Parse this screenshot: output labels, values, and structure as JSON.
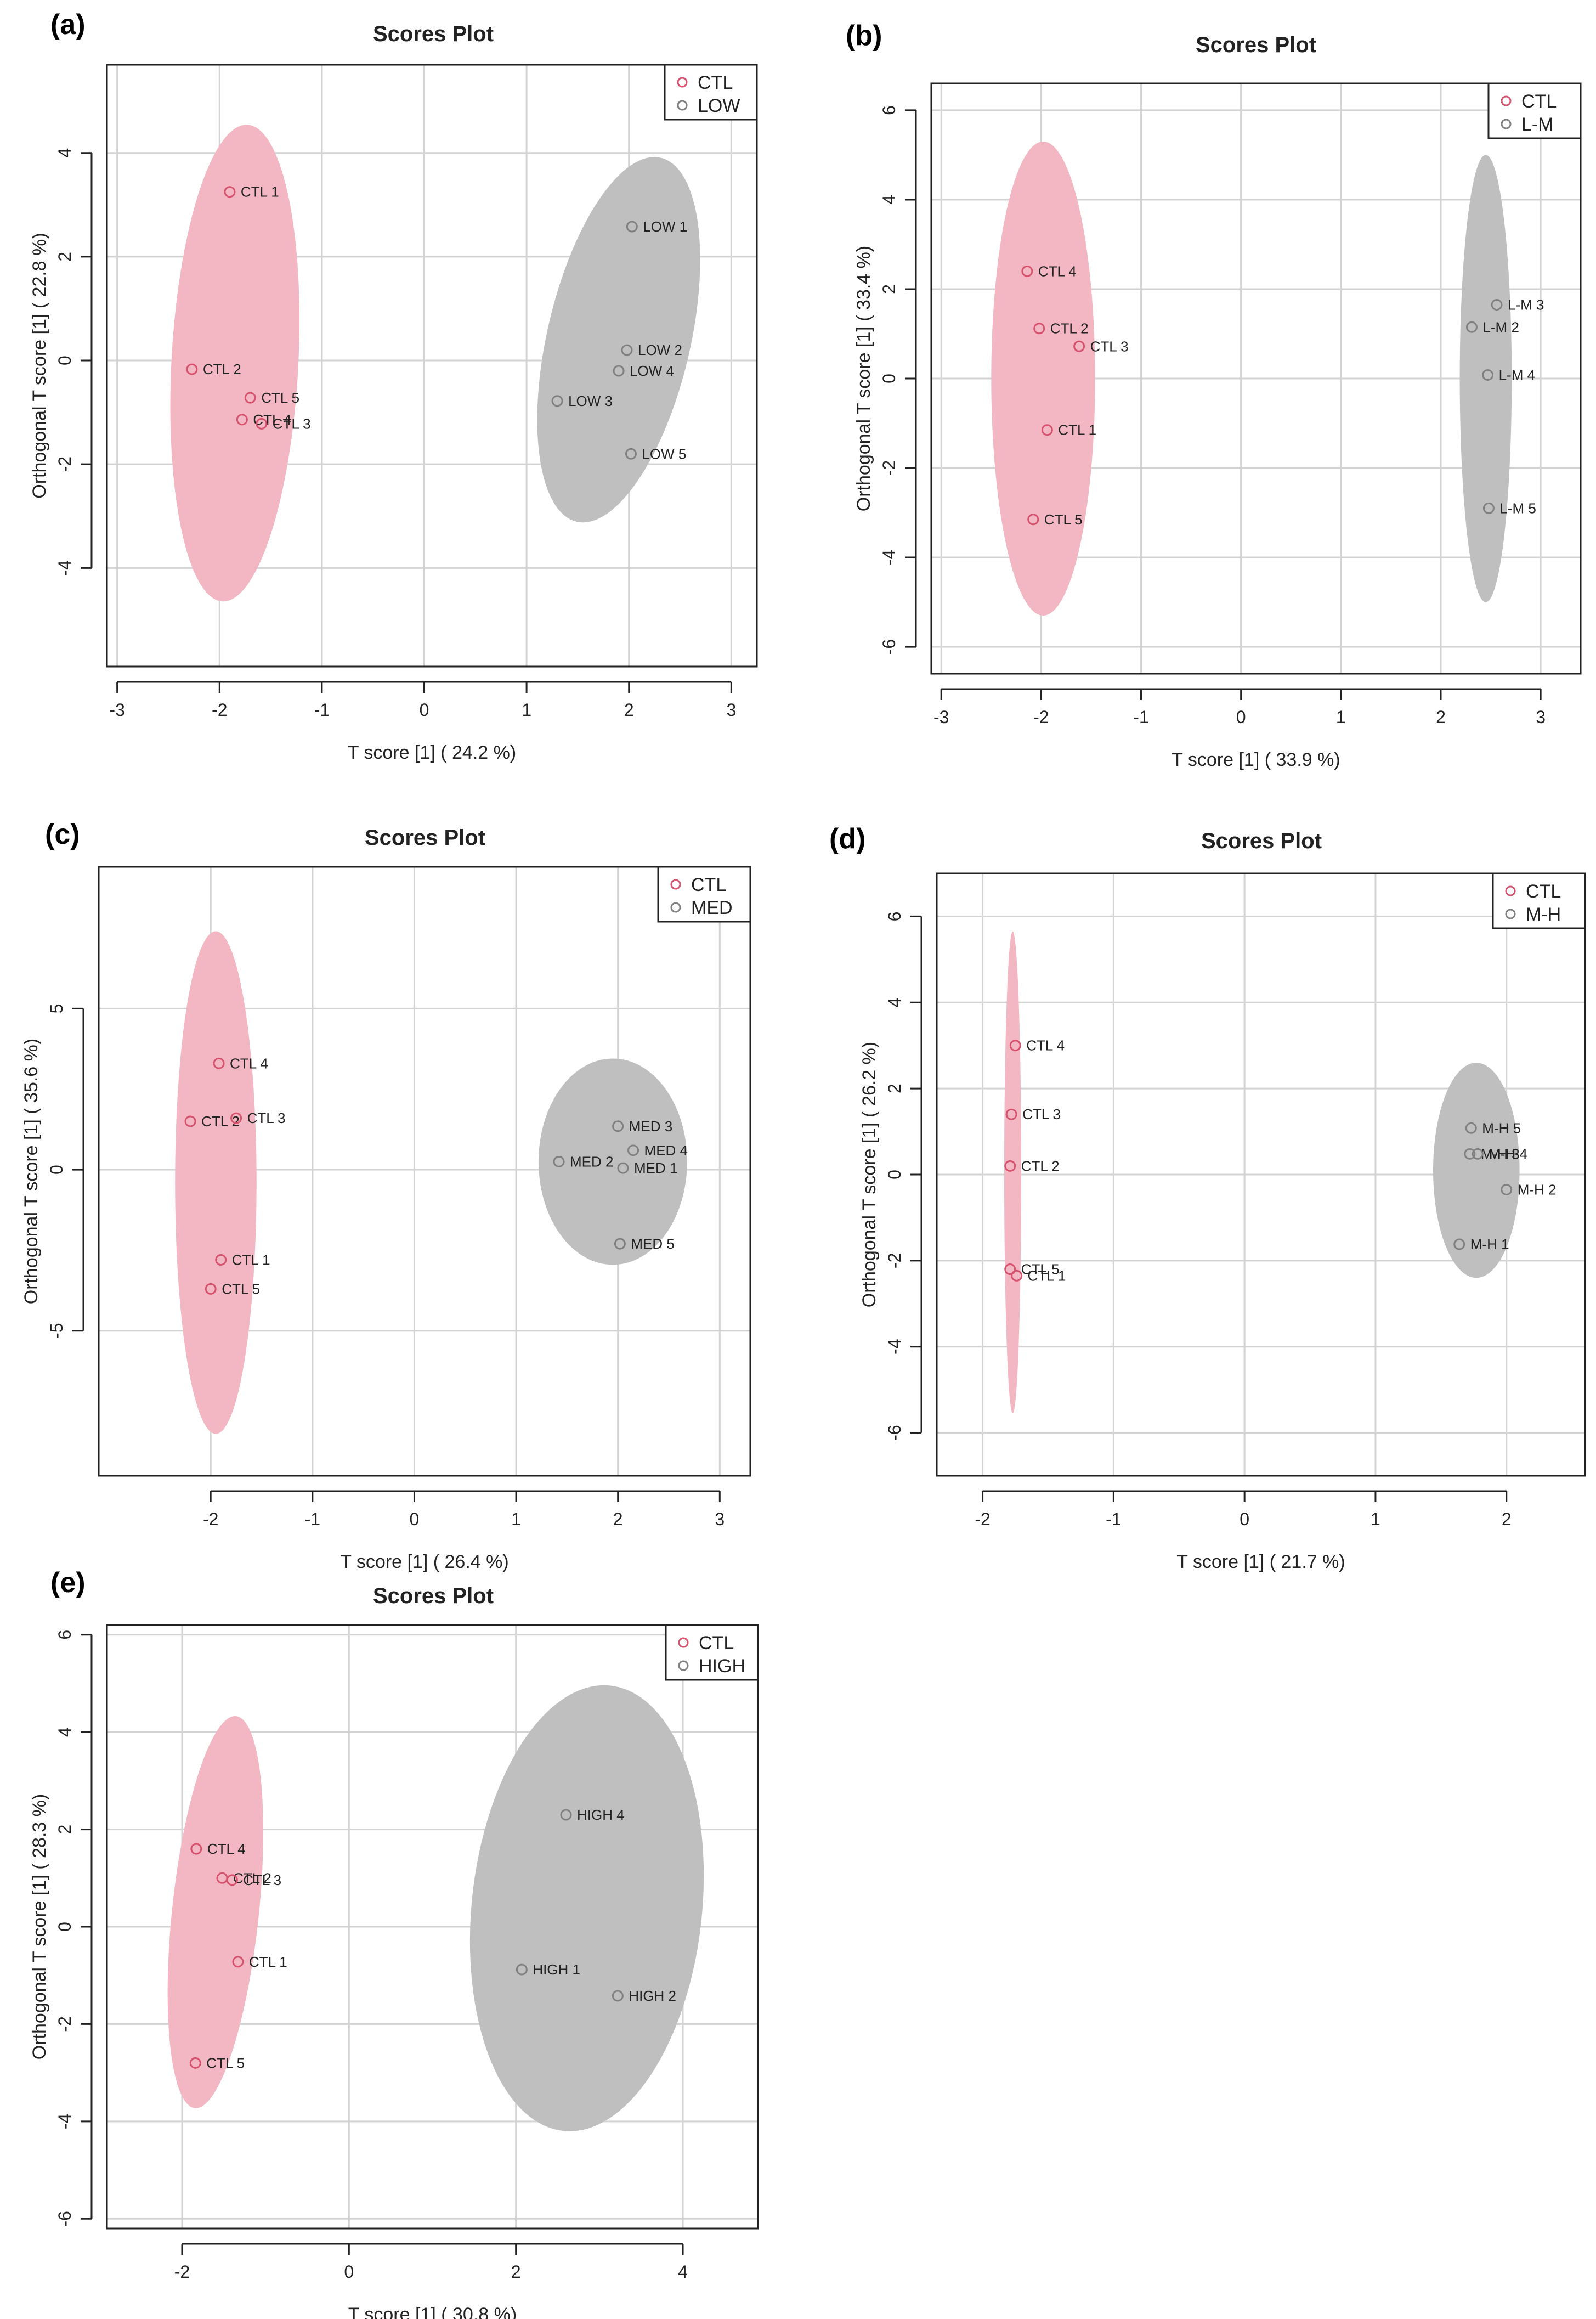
{
  "chart_data": [
    {
      "panel_label": "(a)",
      "type": "scatter",
      "title": "Scores Plot",
      "xlabel": "T score [1] ( 24.2 %)",
      "ylabel": "Orthogonal T score [1] ( 22.8 %)",
      "xlim": [
        -3.1,
        3.25
      ],
      "ylim": [
        -5.9,
        5.7
      ],
      "xticks": [
        -3,
        -2,
        -1,
        0,
        1,
        2,
        3
      ],
      "yticks": [
        -4,
        -2,
        0,
        2,
        4
      ],
      "grid": true,
      "legend": {
        "position": "top-right",
        "entries": [
          "CTL",
          "LOW"
        ]
      },
      "series": [
        {
          "name": "CTL",
          "color": "#d6526e",
          "ellipse": {
            "cx": -1.85,
            "cy": -0.05,
            "rx": 0.62,
            "ry": 4.6,
            "angle": 3,
            "fill": "#f2b7c2"
          },
          "points": [
            {
              "label": "CTL 1",
              "x": -1.9,
              "y": 3.25
            },
            {
              "label": "CTL 2",
              "x": -2.27,
              "y": -0.17
            },
            {
              "label": "CTL 5",
              "x": -1.7,
              "y": -0.72
            },
            {
              "label": "CTL 4",
              "x": -1.78,
              "y": -1.14
            },
            {
              "label": "CTL 3",
              "x": -1.59,
              "y": -1.22
            }
          ]
        },
        {
          "name": "LOW",
          "color": "#808080",
          "ellipse": {
            "cx": 1.9,
            "cy": 0.4,
            "rx": 0.7,
            "ry": 3.6,
            "angle": 13,
            "fill": "#bfbfbf"
          },
          "points": [
            {
              "label": "LOW 1",
              "x": 2.03,
              "y": 2.58
            },
            {
              "label": "LOW 2",
              "x": 1.98,
              "y": 0.2
            },
            {
              "label": "LOW 4",
              "x": 1.9,
              "y": -0.2
            },
            {
              "label": "LOW 3",
              "x": 1.3,
              "y": -0.78
            },
            {
              "label": "LOW 5",
              "x": 2.02,
              "y": -1.8
            }
          ]
        }
      ]
    },
    {
      "panel_label": "(b)",
      "type": "scatter",
      "title": "Scores Plot",
      "xlabel": "T score [1] ( 33.9 %)",
      "ylabel": "Orthogonal T score [1] ( 33.4 %)",
      "xlim": [
        -3.1,
        3.4
      ],
      "ylim": [
        -6.6,
        6.6
      ],
      "xticks": [
        -3,
        -2,
        -1,
        0,
        1,
        2,
        3
      ],
      "yticks": [
        -6,
        -4,
        -2,
        0,
        2,
        4,
        6
      ],
      "grid": true,
      "legend": {
        "position": "top-right",
        "entries": [
          "CTL",
          "L-M"
        ]
      },
      "series": [
        {
          "name": "CTL",
          "color": "#d6526e",
          "ellipse": {
            "cx": -1.98,
            "cy": 0.0,
            "rx": 0.52,
            "ry": 5.3,
            "angle": 0,
            "fill": "#f2b7c2"
          },
          "points": [
            {
              "label": "CTL 4",
              "x": -2.14,
              "y": 2.4
            },
            {
              "label": "CTL 2",
              "x": -2.02,
              "y": 1.12
            },
            {
              "label": "CTL 3",
              "x": -1.62,
              "y": 0.72
            },
            {
              "label": "CTL 1",
              "x": -1.94,
              "y": -1.15
            },
            {
              "label": "CTL 5",
              "x": -2.08,
              "y": -3.15
            }
          ]
        },
        {
          "name": "L-M",
          "color": "#808080",
          "ellipse": {
            "cx": 2.45,
            "cy": 0.0,
            "rx": 0.26,
            "ry": 5.0,
            "angle": 0,
            "fill": "#bfbfbf"
          },
          "points": [
            {
              "label": "L-M 3",
              "x": 2.56,
              "y": 1.65
            },
            {
              "label": "L-M 2",
              "x": 2.31,
              "y": 1.15
            },
            {
              "label": "L-M 4",
              "x": 2.47,
              "y": 0.08
            },
            {
              "label": "L-M 5",
              "x": 2.48,
              "y": -2.9
            }
          ]
        }
      ]
    },
    {
      "panel_label": "(c)",
      "type": "scatter",
      "title": "Scores Plot",
      "xlabel": "T score [1] ( 26.4 %)",
      "ylabel": "Orthogonal T score [1] ( 35.6 %)",
      "xlim": [
        -3.1,
        3.3
      ],
      "ylim": [
        -9.5,
        9.4
      ],
      "xticks": [
        -2,
        -1,
        0,
        1,
        2,
        3
      ],
      "yticks": [
        -5,
        0,
        5
      ],
      "grid": true,
      "legend": {
        "position": "top-right",
        "entries": [
          "CTL",
          "MED"
        ]
      },
      "series": [
        {
          "name": "CTL",
          "color": "#d6526e",
          "ellipse": {
            "cx": -1.95,
            "cy": -0.4,
            "rx": 0.4,
            "ry": 7.8,
            "angle": 0,
            "fill": "#f2b7c2"
          },
          "points": [
            {
              "label": "CTL 4",
              "x": -1.92,
              "y": 3.3
            },
            {
              "label": "CTL 2",
              "x": -2.2,
              "y": 1.5
            },
            {
              "label": "CTL 3",
              "x": -1.75,
              "y": 1.6
            },
            {
              "label": "CTL 1",
              "x": -1.9,
              "y": -2.8
            },
            {
              "label": "CTL 5",
              "x": -2.0,
              "y": -3.7
            }
          ]
        },
        {
          "name": "MED",
          "color": "#808080",
          "ellipse": {
            "cx": 1.95,
            "cy": 0.25,
            "rx": 0.73,
            "ry": 3.2,
            "angle": 0,
            "fill": "#bfbfbf"
          },
          "points": [
            {
              "label": "MED 3",
              "x": 2.0,
              "y": 1.35
            },
            {
              "label": "MED 4",
              "x": 2.15,
              "y": 0.6
            },
            {
              "label": "MED 2",
              "x": 1.42,
              "y": 0.25
            },
            {
              "label": "MED 1",
              "x": 2.05,
              "y": 0.05
            },
            {
              "label": "MED 5",
              "x": 2.02,
              "y": -2.3
            }
          ]
        }
      ]
    },
    {
      "panel_label": "(d)",
      "type": "scatter",
      "title": "Scores Plot",
      "xlabel": "T score [1] ( 21.7 %)",
      "ylabel": "Orthogonal T score [1] ( 26.2 %)",
      "xlim": [
        -2.35,
        2.6
      ],
      "ylim": [
        -7.0,
        7.0
      ],
      "xticks": [
        -2,
        -1,
        0,
        1,
        2
      ],
      "yticks": [
        -6,
        -4,
        -2,
        0,
        2,
        4,
        6
      ],
      "grid": true,
      "legend": {
        "position": "top-right",
        "entries": [
          "CTL",
          "M-H"
        ]
      },
      "series": [
        {
          "name": "CTL",
          "color": "#d6526e",
          "ellipse": {
            "cx": -1.77,
            "cy": 0.05,
            "rx": 0.065,
            "ry": 5.6,
            "angle": 0,
            "fill": "#f2b7c2"
          },
          "points": [
            {
              "label": "CTL 4",
              "x": -1.75,
              "y": 3.0
            },
            {
              "label": "CTL 3",
              "x": -1.78,
              "y": 1.4
            },
            {
              "label": "CTL 2",
              "x": -1.79,
              "y": 0.2
            },
            {
              "label": "CTL 5",
              "x": -1.79,
              "y": -2.2
            },
            {
              "label": "CTL 1",
              "x": -1.74,
              "y": -2.35
            }
          ]
        },
        {
          "name": "M-H",
          "color": "#808080",
          "ellipse": {
            "cx": 1.77,
            "cy": 0.1,
            "rx": 0.33,
            "ry": 2.5,
            "angle": 0,
            "fill": "#bfbfbf"
          },
          "points": [
            {
              "label": "M-H 5",
              "x": 1.73,
              "y": 1.08
            },
            {
              "label": "M-H 3",
              "x": 1.72,
              "y": 0.48
            },
            {
              "label": "M-H 4",
              "x": 1.78,
              "y": 0.48
            },
            {
              "label": "M-H 2",
              "x": 2.0,
              "y": -0.35
            },
            {
              "label": "M-H 1",
              "x": 1.64,
              "y": -1.62
            }
          ]
        }
      ]
    },
    {
      "panel_label": "(e)",
      "type": "scatter",
      "title": "Scores Plot",
      "xlabel": "T score [1] ( 30.8 %)",
      "ylabel": "Orthogonal T score [1] ( 28.3 %)",
      "xlim": [
        -2.9,
        4.9
      ],
      "ylim": [
        -6.2,
        6.2
      ],
      "xticks": [
        -2,
        0,
        2,
        4
      ],
      "yticks": [
        -6,
        -4,
        -2,
        0,
        2,
        4,
        6
      ],
      "grid": true,
      "legend": {
        "position": "top-right",
        "entries": [
          "CTL",
          "HIGH"
        ]
      },
      "series": [
        {
          "name": "CTL",
          "color": "#d6526e",
          "ellipse": {
            "cx": -1.6,
            "cy": 0.3,
            "rx": 0.52,
            "ry": 4.05,
            "angle": 6,
            "fill": "#f2b7c2"
          },
          "points": [
            {
              "label": "CTL 4",
              "x": -1.83,
              "y": 1.6
            },
            {
              "label": "CTL 2",
              "x": -1.52,
              "y": 1.0
            },
            {
              "label": "CTL 3",
              "x": -1.4,
              "y": 0.96
            },
            {
              "label": "CTL 1",
              "x": -1.33,
              "y": -0.72
            },
            {
              "label": "CTL 5",
              "x": -1.84,
              "y": -2.8
            }
          ]
        },
        {
          "name": "HIGH",
          "color": "#808080",
          "ellipse": {
            "cx": 2.85,
            "cy": 0.38,
            "rx": 1.38,
            "ry": 4.6,
            "angle": 6,
            "fill": "#bfbfbf"
          },
          "points": [
            {
              "label": "HIGH 4",
              "x": 2.6,
              "y": 2.3
            },
            {
              "label": "HIGH 1",
              "x": 2.07,
              "y": -0.88
            },
            {
              "label": "HIGH 2",
              "x": 3.22,
              "y": -1.42
            }
          ]
        }
      ]
    }
  ]
}
